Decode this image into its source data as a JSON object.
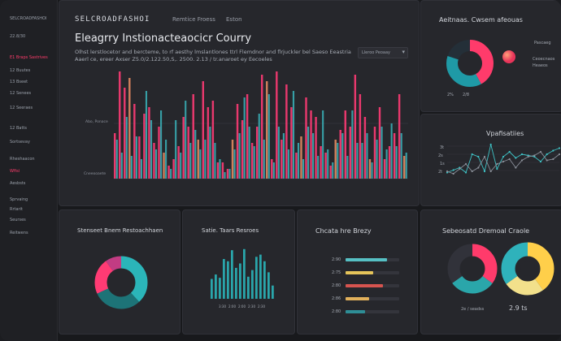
{
  "sidebar": {
    "items": [
      {
        "label": "SELCROADFASHOI",
        "accent": false
      },
      {
        "label": "22.8/30",
        "accent": false
      },
      {
        "label": "E1 Braps Sastrives",
        "accent": true
      },
      {
        "label": "12 Buutes",
        "accent": false
      },
      {
        "label": "13 Bseet",
        "accent": false
      },
      {
        "label": "12 Senees",
        "accent": false
      },
      {
        "label": "12 Seeraes",
        "accent": false
      },
      {
        "label": "12 Batts",
        "accent": false
      },
      {
        "label": "Sortsevay",
        "accent": false
      },
      {
        "label": "Rheshaacon",
        "accent": false
      },
      {
        "label": "Wfisi",
        "accent": true
      },
      {
        "label": "Aesbsts",
        "accent": false
      },
      {
        "label": "Sprvaing",
        "accent": false
      },
      {
        "label": "Rrtarit",
        "accent": false
      },
      {
        "label": "Seurses",
        "accent": false
      },
      {
        "label": "Reitwens",
        "accent": false
      }
    ]
  },
  "header": {
    "brand": "SELCROADFASHOI",
    "nav": [
      "Remtice Froess",
      "Eston"
    ],
    "title": "Eleagrry Instionacteaocicr Courry",
    "desc1": "Olhst lerstlocetor and bercteme, to rf aesthy lmslantlones ttrl Flemdnor and flrjuckler bel Saeso Eeastria",
    "desc2": "Aaerl ce, ereer Axser Z5.0/2.122.50,S,. 2500. 2.13 / tr.anaroet ey Eecoeles",
    "dropdown": "Lleroo Peoaay",
    "axis": [
      "Abo, Ponace",
      "Cneeooaete"
    ]
  },
  "main_chart": {
    "type": "bar",
    "series": [
      {
        "values": [
          14,
          33,
          28,
          31,
          23,
          13,
          20,
          22,
          11,
          16,
          8,
          4,
          6,
          10,
          19,
          16,
          26,
          12,
          30,
          22,
          24,
          5,
          5,
          3,
          12,
          23,
          18,
          26,
          11,
          16,
          32,
          30,
          6,
          33,
          12,
          29,
          22,
          8,
          13,
          25,
          21,
          19,
          10,
          8,
          4,
          12,
          15,
          21,
          16,
          32,
          26,
          19,
          6,
          16,
          22,
          6,
          10,
          14,
          26,
          7
        ]
      },
      {
        "values": [
          12,
          8,
          19,
          7,
          13,
          6,
          27,
          18,
          9,
          21,
          12,
          3,
          18,
          8,
          24,
          11,
          15,
          9,
          12,
          16,
          11,
          6,
          2,
          3,
          9,
          14,
          25,
          16,
          10,
          20,
          12,
          26,
          5,
          16,
          14,
          9,
          27,
          11,
          6,
          16,
          14,
          7,
          21,
          9,
          5,
          11,
          14,
          7,
          21,
          11,
          11,
          14,
          5,
          12,
          16,
          9,
          17,
          10,
          14,
          8
        ]
      }
    ],
    "colors": [
      "#ff3b74",
      "#3ab5bc",
      "#e48a62"
    ],
    "ylim": [
      0,
      35
    ]
  },
  "donut_panel": {
    "title": "Aeitnaas. Cwsem afeouas",
    "legend1": "Pascaeg",
    "legend2": "Ceoecnaos",
    "legend3": "Heaeos",
    "footer": [
      "2%",
      "2/8"
    ],
    "slices": [
      42,
      38,
      20
    ],
    "colors": [
      "#ff3b6b",
      "#1f9aa6",
      "#242f38"
    ],
    "ball_color": "#ff6b4a"
  },
  "line_panel": {
    "title": "Vpafisatiies",
    "ylabels": [
      "3t",
      "2s",
      "1s",
      "2t"
    ],
    "series1": [
      5,
      7,
      9,
      5,
      20,
      18,
      6,
      28,
      8,
      18,
      22,
      17,
      20,
      19,
      18,
      14,
      20,
      23,
      25
    ],
    "series2": [
      6,
      4,
      8,
      12,
      6,
      9,
      18,
      6,
      12,
      14,
      16,
      9,
      15,
      18,
      19,
      22,
      15,
      16,
      20
    ]
  },
  "bottom_donut": {
    "title": "Stenseet Bnem Restoachhaen",
    "slices": [
      38,
      30,
      22,
      10
    ],
    "colors": [
      "#2bb5b9",
      "#1d7377",
      "#ff3b74",
      "#c23c83"
    ]
  },
  "bottom_bars": {
    "title": "Satie. Taars Resroes",
    "values": [
      18,
      22,
      19,
      36,
      34,
      44,
      28,
      32,
      45,
      20,
      26,
      38,
      40,
      34,
      24,
      12
    ],
    "axis": [
      "3:30",
      "2:00",
      "2:00",
      "2:30",
      "2:30"
    ]
  },
  "bottom_hbars": {
    "title": "Chcata hre Brezy",
    "rows": [
      {
        "label": "2:90",
        "value": 0.78,
        "color": "#56c0c4"
      },
      {
        "label": "2:75",
        "value": 0.52,
        "color": "#e5c45a"
      },
      {
        "label": "2:80",
        "value": 0.7,
        "color": "#d6544f"
      },
      {
        "label": "2:86",
        "value": 0.44,
        "color": "#e1b05b"
      },
      {
        "label": "2:80",
        "value": 0.36,
        "color": "#2e8e96"
      }
    ]
  },
  "bottom_donuts2": {
    "title": "Sebeosatd Dremoal Craole",
    "labels": [
      "2e / seadss",
      "2.9 ts"
    ],
    "donutA": {
      "slices": [
        35,
        30,
        35
      ],
      "colors": [
        "#ff3b6b",
        "#2aa6aa",
        "#31323a"
      ]
    },
    "donutB": {
      "slices": [
        40,
        25,
        35
      ],
      "colors": [
        "#ffcf4a",
        "#f2e08b",
        "#2fb2bb"
      ],
      "accent": "#ff3b6b"
    }
  }
}
